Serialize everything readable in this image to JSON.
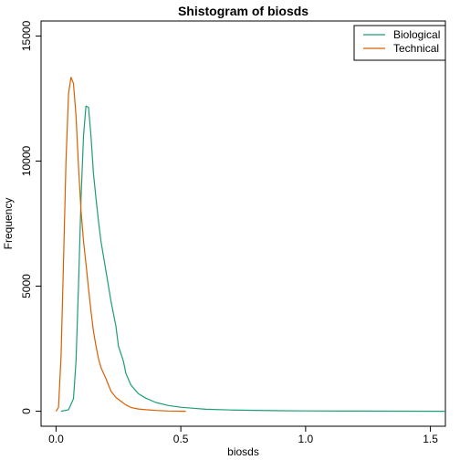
{
  "chart_data": {
    "type": "line",
    "title": "Shistogram of biosds",
    "xlabel": "biosds",
    "ylabel": "Frequency",
    "xlim": [
      -0.06,
      1.56
    ],
    "ylim": [
      -600,
      15600
    ],
    "x_ticks": [
      {
        "value": 0.0,
        "label": "0.0"
      },
      {
        "value": 0.5,
        "label": "0.5"
      },
      {
        "value": 1.0,
        "label": "1.0"
      },
      {
        "value": 1.5,
        "label": "1.5"
      }
    ],
    "y_ticks": [
      {
        "value": 0,
        "label": "0"
      },
      {
        "value": 5000,
        "label": "5000"
      },
      {
        "value": 10000,
        "label": "10000"
      },
      {
        "value": 15000,
        "label": "15000"
      }
    ],
    "legend_position": "top-right",
    "grid": false,
    "series": [
      {
        "name": "Biological",
        "color": "#1b9e77",
        "x": [
          0.02,
          0.05,
          0.07,
          0.08,
          0.09,
          0.1,
          0.11,
          0.12,
          0.13,
          0.14,
          0.15,
          0.16,
          0.17,
          0.18,
          0.2,
          0.22,
          0.24,
          0.25,
          0.27,
          0.28,
          0.3,
          0.33,
          0.36,
          0.4,
          0.45,
          0.5,
          0.55,
          0.6,
          0.7,
          0.8,
          0.9,
          1.0,
          1.2,
          1.4,
          1.56
        ],
        "y": [
          0,
          60,
          500,
          2000,
          5000,
          8500,
          11000,
          12200,
          12150,
          11000,
          9500,
          8500,
          7600,
          6800,
          5600,
          4400,
          3400,
          2600,
          2000,
          1500,
          1050,
          700,
          520,
          350,
          230,
          160,
          120,
          80,
          50,
          35,
          20,
          12,
          6,
          3,
          0
        ]
      },
      {
        "name": "Technical",
        "color": "#d95f02",
        "x": [
          0.0,
          0.01,
          0.02,
          0.03,
          0.04,
          0.05,
          0.06,
          0.07,
          0.08,
          0.09,
          0.1,
          0.11,
          0.12,
          0.13,
          0.14,
          0.15,
          0.16,
          0.17,
          0.18,
          0.2,
          0.22,
          0.24,
          0.26,
          0.28,
          0.3,
          0.33,
          0.36,
          0.4,
          0.45,
          0.5,
          0.52
        ],
        "y": [
          0,
          150,
          2200,
          6000,
          10000,
          12700,
          13350,
          13100,
          11800,
          9800,
          8000,
          6800,
          5900,
          4900,
          4000,
          3200,
          2600,
          2100,
          1750,
          1300,
          800,
          550,
          400,
          250,
          150,
          90,
          60,
          30,
          10,
          3,
          0
        ]
      }
    ]
  }
}
